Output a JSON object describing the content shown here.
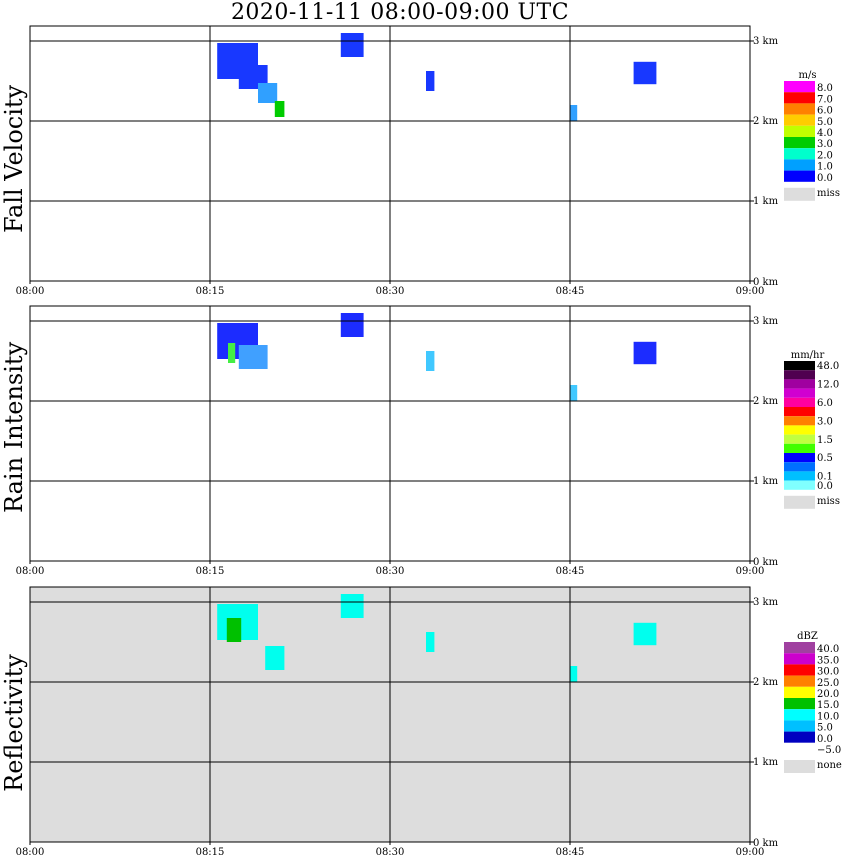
{
  "title": "2020-11-11   08:00-09:00 UTC",
  "x_ticks": [
    "08:00",
    "08:15",
    "08:30",
    "08:45",
    "09:00"
  ],
  "y_ticks": [
    "0 km",
    "1 km",
    "2 km",
    "3 km"
  ],
  "colors": {
    "missing": "#dddddd",
    "grid": "#000000"
  },
  "chart_data": [
    {
      "type": "heatmap",
      "title": "Fall Velocity",
      "xlabel": "",
      "ylabel": "Fall Velocity",
      "xlim": [
        "08:00",
        "09:00"
      ],
      "ylim_km": [
        0,
        3.2
      ],
      "background": "#ffffff",
      "legend": {
        "unit": "m/s",
        "labels": [
          "8.0",
          "7.0",
          "6.0",
          "5.0",
          "4.0",
          "3.0",
          "2.0",
          "1.0",
          "0.0"
        ],
        "colors": [
          "#ff00ff",
          "#ff0000",
          "#ff8000",
          "#ffcc00",
          "#c0ff00",
          "#00cc00",
          "#00ffcc",
          "#00a0ff",
          "#0000ff"
        ],
        "missing_label": "miss"
      },
      "cells": [
        {
          "t": 15.6,
          "h": 2.75,
          "dt": 3.4,
          "dh": 0.45,
          "c": "#1838ff"
        },
        {
          "t": 17.4,
          "h": 2.55,
          "dt": 2.4,
          "dh": 0.3,
          "c": "#1838ff"
        },
        {
          "t": 19.0,
          "h": 2.35,
          "dt": 1.6,
          "dh": 0.25,
          "c": "#30a0ff"
        },
        {
          "t": 20.4,
          "h": 2.15,
          "dt": 0.8,
          "dh": 0.2,
          "c": "#00cc00"
        },
        {
          "t": 25.9,
          "h": 2.95,
          "dt": 1.9,
          "dh": 0.3,
          "c": "#1838ff"
        },
        {
          "t": 33.0,
          "h": 2.5,
          "dt": 0.7,
          "dh": 0.25,
          "c": "#1838ff"
        },
        {
          "t": 45.0,
          "h": 2.1,
          "dt": 0.6,
          "dh": 0.2,
          "c": "#30a0ff"
        },
        {
          "t": 50.3,
          "h": 2.6,
          "dt": 1.9,
          "dh": 0.28,
          "c": "#1838ff"
        }
      ]
    },
    {
      "type": "heatmap",
      "title": "Rain Intensity",
      "xlabel": "",
      "ylabel": "Rain Intensity",
      "xlim": [
        "08:00",
        "09:00"
      ],
      "ylim_km": [
        0,
        3.2
      ],
      "background": "#ffffff",
      "legend": {
        "unit": "mm/hr",
        "labels": [
          "48.0",
          "",
          "12.0",
          "",
          "6.0",
          "",
          "3.0",
          "",
          "1.5",
          "",
          "0.5",
          "",
          "0.1",
          "0.0"
        ],
        "colors": [
          "#000000",
          "#500050",
          "#a000a0",
          "#d000d0",
          "#ff00a0",
          "#ff0000",
          "#ff8000",
          "#ffff00",
          "#c0ff40",
          "#40ff00",
          "#0000ff",
          "#0070ff",
          "#00c0ff",
          "#80ffff"
        ],
        "missing_label": "miss"
      },
      "cells": [
        {
          "t": 15.6,
          "h": 2.75,
          "dt": 3.4,
          "dh": 0.45,
          "c": "#1c2cff"
        },
        {
          "t": 17.4,
          "h": 2.55,
          "dt": 2.4,
          "dh": 0.3,
          "c": "#40a0ff"
        },
        {
          "t": 16.5,
          "h": 2.6,
          "dt": 0.6,
          "dh": 0.25,
          "c": "#44ee44"
        },
        {
          "t": 25.9,
          "h": 2.95,
          "dt": 1.9,
          "dh": 0.3,
          "c": "#1c2cff"
        },
        {
          "t": 33.0,
          "h": 2.5,
          "dt": 0.7,
          "dh": 0.25,
          "c": "#40c8ff"
        },
        {
          "t": 45.0,
          "h": 2.1,
          "dt": 0.6,
          "dh": 0.2,
          "c": "#40c8ff"
        },
        {
          "t": 50.3,
          "h": 2.6,
          "dt": 1.9,
          "dh": 0.28,
          "c": "#1c2cff"
        }
      ]
    },
    {
      "type": "heatmap",
      "title": "Reflectivity",
      "xlabel": "",
      "ylabel": "Reflectivity",
      "xlim": [
        "08:00",
        "09:00"
      ],
      "ylim_km": [
        0,
        3.2
      ],
      "background": "#dddddd",
      "legend": {
        "unit": "dBZ",
        "labels": [
          "40.0",
          "35.0",
          "30.0",
          "25.0",
          "20.0",
          "15.0",
          "10.0",
          "5.0",
          "0.0",
          "−5.0"
        ],
        "colors": [
          "#a040a0",
          "#cc00cc",
          "#ff0000",
          "#ff8000",
          "#ffff00",
          "#00c000",
          "#00ffff",
          "#00c0ff",
          "#0000c0",
          "#ffffff"
        ],
        "missing_label": "none"
      },
      "cells": [
        {
          "t": 15.6,
          "h": 2.75,
          "dt": 3.4,
          "dh": 0.45,
          "c": "#00ffee"
        },
        {
          "t": 16.4,
          "h": 2.65,
          "dt": 1.2,
          "dh": 0.3,
          "c": "#00c000"
        },
        {
          "t": 19.6,
          "h": 2.3,
          "dt": 1.6,
          "dh": 0.3,
          "c": "#00ffee"
        },
        {
          "t": 25.9,
          "h": 2.95,
          "dt": 1.9,
          "dh": 0.3,
          "c": "#00ffee"
        },
        {
          "t": 33.0,
          "h": 2.5,
          "dt": 0.7,
          "dh": 0.25,
          "c": "#00ffee"
        },
        {
          "t": 45.0,
          "h": 2.1,
          "dt": 0.6,
          "dh": 0.2,
          "c": "#00ffee"
        },
        {
          "t": 50.3,
          "h": 2.6,
          "dt": 1.9,
          "dh": 0.28,
          "c": "#00ffee"
        }
      ]
    }
  ]
}
